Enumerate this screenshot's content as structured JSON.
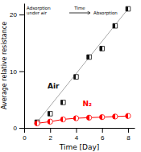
{
  "chart_data": {
    "type": "scatter",
    "x": [
      1,
      2,
      3,
      4,
      5,
      6,
      7,
      8
    ],
    "series": [
      {
        "name": "Air",
        "color": "#111111",
        "marker": "square",
        "line_style": "none",
        "values": [
          1.0,
          2.5,
          4.5,
          9.0,
          12.5,
          14.0,
          18.0,
          21.0
        ]
      },
      {
        "name": "N₂",
        "color": "#ff0000",
        "marker": "circle",
        "line_style": "solid",
        "values": [
          0.8,
          1.1,
          1.5,
          1.7,
          1.8,
          1.9,
          2.0,
          2.1
        ]
      }
    ],
    "xlabel": "Time [Day]",
    "ylabel": "Average relative resistance",
    "xlim": [
      0,
      8.5
    ],
    "ylim": [
      0,
      22
    ],
    "xticks": [
      0,
      2,
      4,
      6,
      8
    ],
    "yticks": [
      0,
      10,
      20
    ],
    "grid": false,
    "annotations": [
      "Adsorption\nunder air",
      "Time",
      "Absorption"
    ]
  }
}
